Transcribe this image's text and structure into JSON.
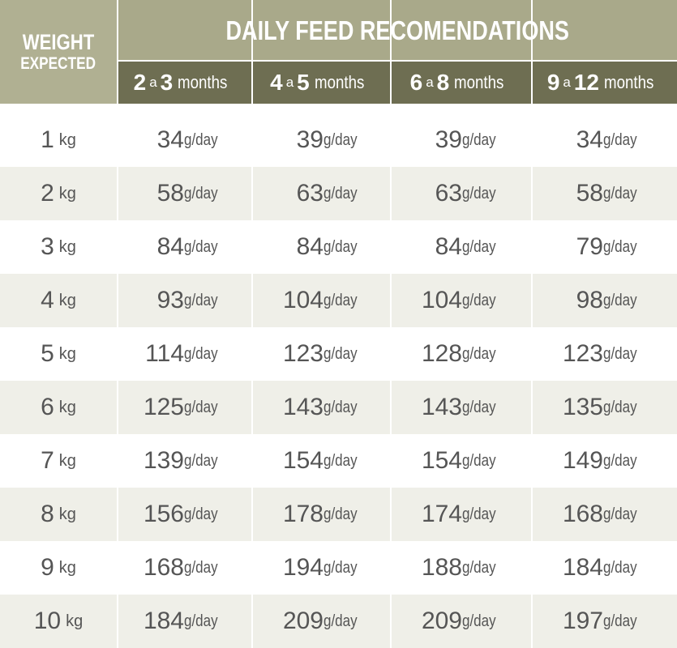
{
  "header": {
    "weight_line1": "WEIGHT",
    "weight_line2": "EXPECTED",
    "daily_title": "DAILY FEED RECOMENDATIONS",
    "periods": [
      {
        "from": "2",
        "sep": "a",
        "to": "3",
        "unit": "months"
      },
      {
        "from": "4",
        "sep": "a",
        "to": "5",
        "unit": "months"
      },
      {
        "from": "6",
        "sep": "a",
        "to": "8",
        "unit": "months"
      },
      {
        "from": "9",
        "sep": "a",
        "to": "12",
        "unit": "months"
      }
    ]
  },
  "weight_unit": "kg",
  "value_unit": "g/day",
  "rows": [
    {
      "kg": "1",
      "values": [
        "34",
        "39",
        "39",
        "34"
      ]
    },
    {
      "kg": "2",
      "values": [
        "58",
        "63",
        "63",
        "58"
      ]
    },
    {
      "kg": "3",
      "values": [
        "84",
        "84",
        "84",
        "79"
      ]
    },
    {
      "kg": "4",
      "values": [
        "93",
        "104",
        "104",
        "98"
      ]
    },
    {
      "kg": "5",
      "values": [
        "114",
        "123",
        "128",
        "123"
      ]
    },
    {
      "kg": "6",
      "values": [
        "125",
        "143",
        "143",
        "135"
      ]
    },
    {
      "kg": "7",
      "values": [
        "139",
        "154",
        "154",
        "149"
      ]
    },
    {
      "kg": "8",
      "values": [
        "156",
        "178",
        "174",
        "168"
      ]
    },
    {
      "kg": "9",
      "values": [
        "168",
        "194",
        "188",
        "184"
      ]
    },
    {
      "kg": "10",
      "values": [
        "184",
        "209",
        "209",
        "197"
      ]
    }
  ],
  "colors": {
    "header_bg": "#a9a98a",
    "period_bg": "#6e6e52",
    "alt_row_bg": "#efefe8",
    "text": "#555555"
  }
}
